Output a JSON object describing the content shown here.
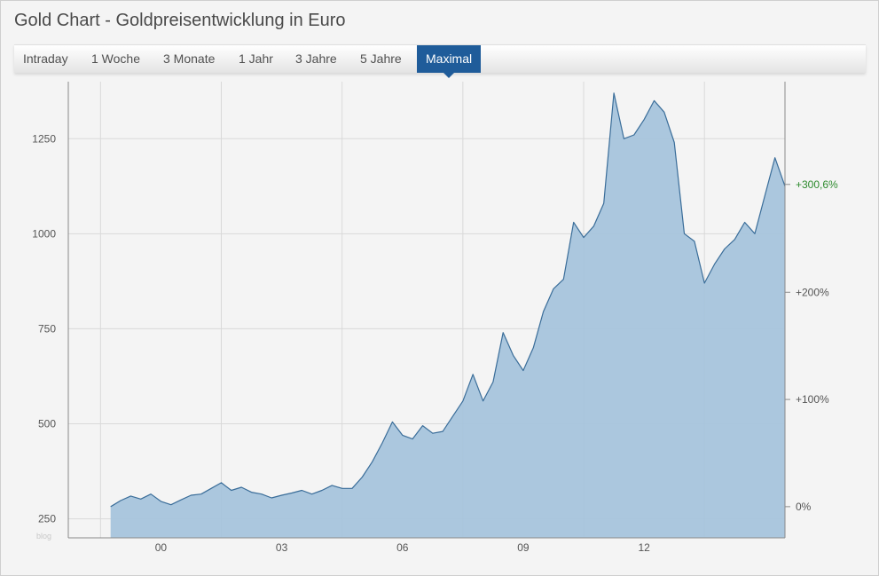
{
  "header": {
    "title": "Gold Chart - Goldpreisentwicklung in Euro"
  },
  "tabs": [
    {
      "label": "Intraday",
      "active": false
    },
    {
      "label": "1 Woche",
      "active": false
    },
    {
      "label": "3 Monate",
      "active": false
    },
    {
      "label": "1 Jahr",
      "active": false
    },
    {
      "label": "3 Jahre",
      "active": false
    },
    {
      "label": "5 Jahre",
      "active": false
    },
    {
      "label": "Maximal",
      "active": true
    }
  ],
  "colors": {
    "fill": "#a7c4dc",
    "line": "#3a6d99",
    "active_tab": "#1f5c9a",
    "last_value": "#2e8b2e"
  },
  "chart_data": {
    "type": "area",
    "title": "Gold Chart - Goldpreisentwicklung in Euro",
    "xlabel": "",
    "ylabel": "",
    "x_tick_labels": [
      "00",
      "03",
      "06",
      "09",
      "12"
    ],
    "y_tick_values": [
      250,
      500,
      750,
      1000,
      1250
    ],
    "y_tick_labels": [
      "250",
      "500",
      "750",
      "1000",
      "1250"
    ],
    "right_axis_labels": [
      "0%",
      "+100%",
      "+200%",
      "+300,6%"
    ],
    "right_axis_values": [
      0,
      100,
      200,
      300.6
    ],
    "ylim": [
      200,
      1400
    ],
    "xlim": [
      1997.7,
      2015.5
    ],
    "grid": true,
    "watermark": "blog",
    "series": [
      {
        "x": [
          1998.75,
          1999.0,
          1999.25,
          1999.5,
          1999.75,
          2000.0,
          2000.25,
          2000.5,
          2000.75,
          2001.0,
          2001.25,
          2001.5,
          2001.75,
          2002.0,
          2002.25,
          2002.5,
          2002.75,
          2003.0,
          2003.25,
          2003.5,
          2003.75,
          2004.0,
          2004.25,
          2004.5,
          2004.75,
          2005.0,
          2005.25,
          2005.5,
          2005.75,
          2006.0,
          2006.25,
          2006.5,
          2006.75,
          2007.0,
          2007.25,
          2007.5,
          2007.75,
          2008.0,
          2008.25,
          2008.5,
          2008.75,
          2009.0,
          2009.25,
          2009.5,
          2009.75,
          2010.0,
          2010.25,
          2010.5,
          2010.75,
          2011.0,
          2011.25,
          2011.5,
          2011.75,
          2012.0,
          2012.25,
          2012.5,
          2012.75,
          2013.0,
          2013.25,
          2013.5,
          2013.75,
          2014.0,
          2014.25,
          2014.5,
          2014.75,
          2015.0,
          2015.25,
          2015.5
        ],
        "values": [
          282,
          298,
          310,
          302,
          315,
          296,
          287,
          300,
          312,
          315,
          330,
          345,
          325,
          333,
          320,
          315,
          305,
          312,
          318,
          325,
          315,
          325,
          338,
          330,
          330,
          360,
          400,
          450,
          505,
          470,
          460,
          495,
          475,
          480,
          520,
          560,
          630,
          560,
          610,
          740,
          680,
          640,
          700,
          795,
          855,
          880,
          1030,
          990,
          1020,
          1080,
          1370,
          1250,
          1260,
          1300,
          1350,
          1320,
          1240,
          1000,
          980,
          870,
          920,
          960,
          985,
          1030,
          1000,
          1100,
          1200,
          1125
        ]
      }
    ]
  }
}
